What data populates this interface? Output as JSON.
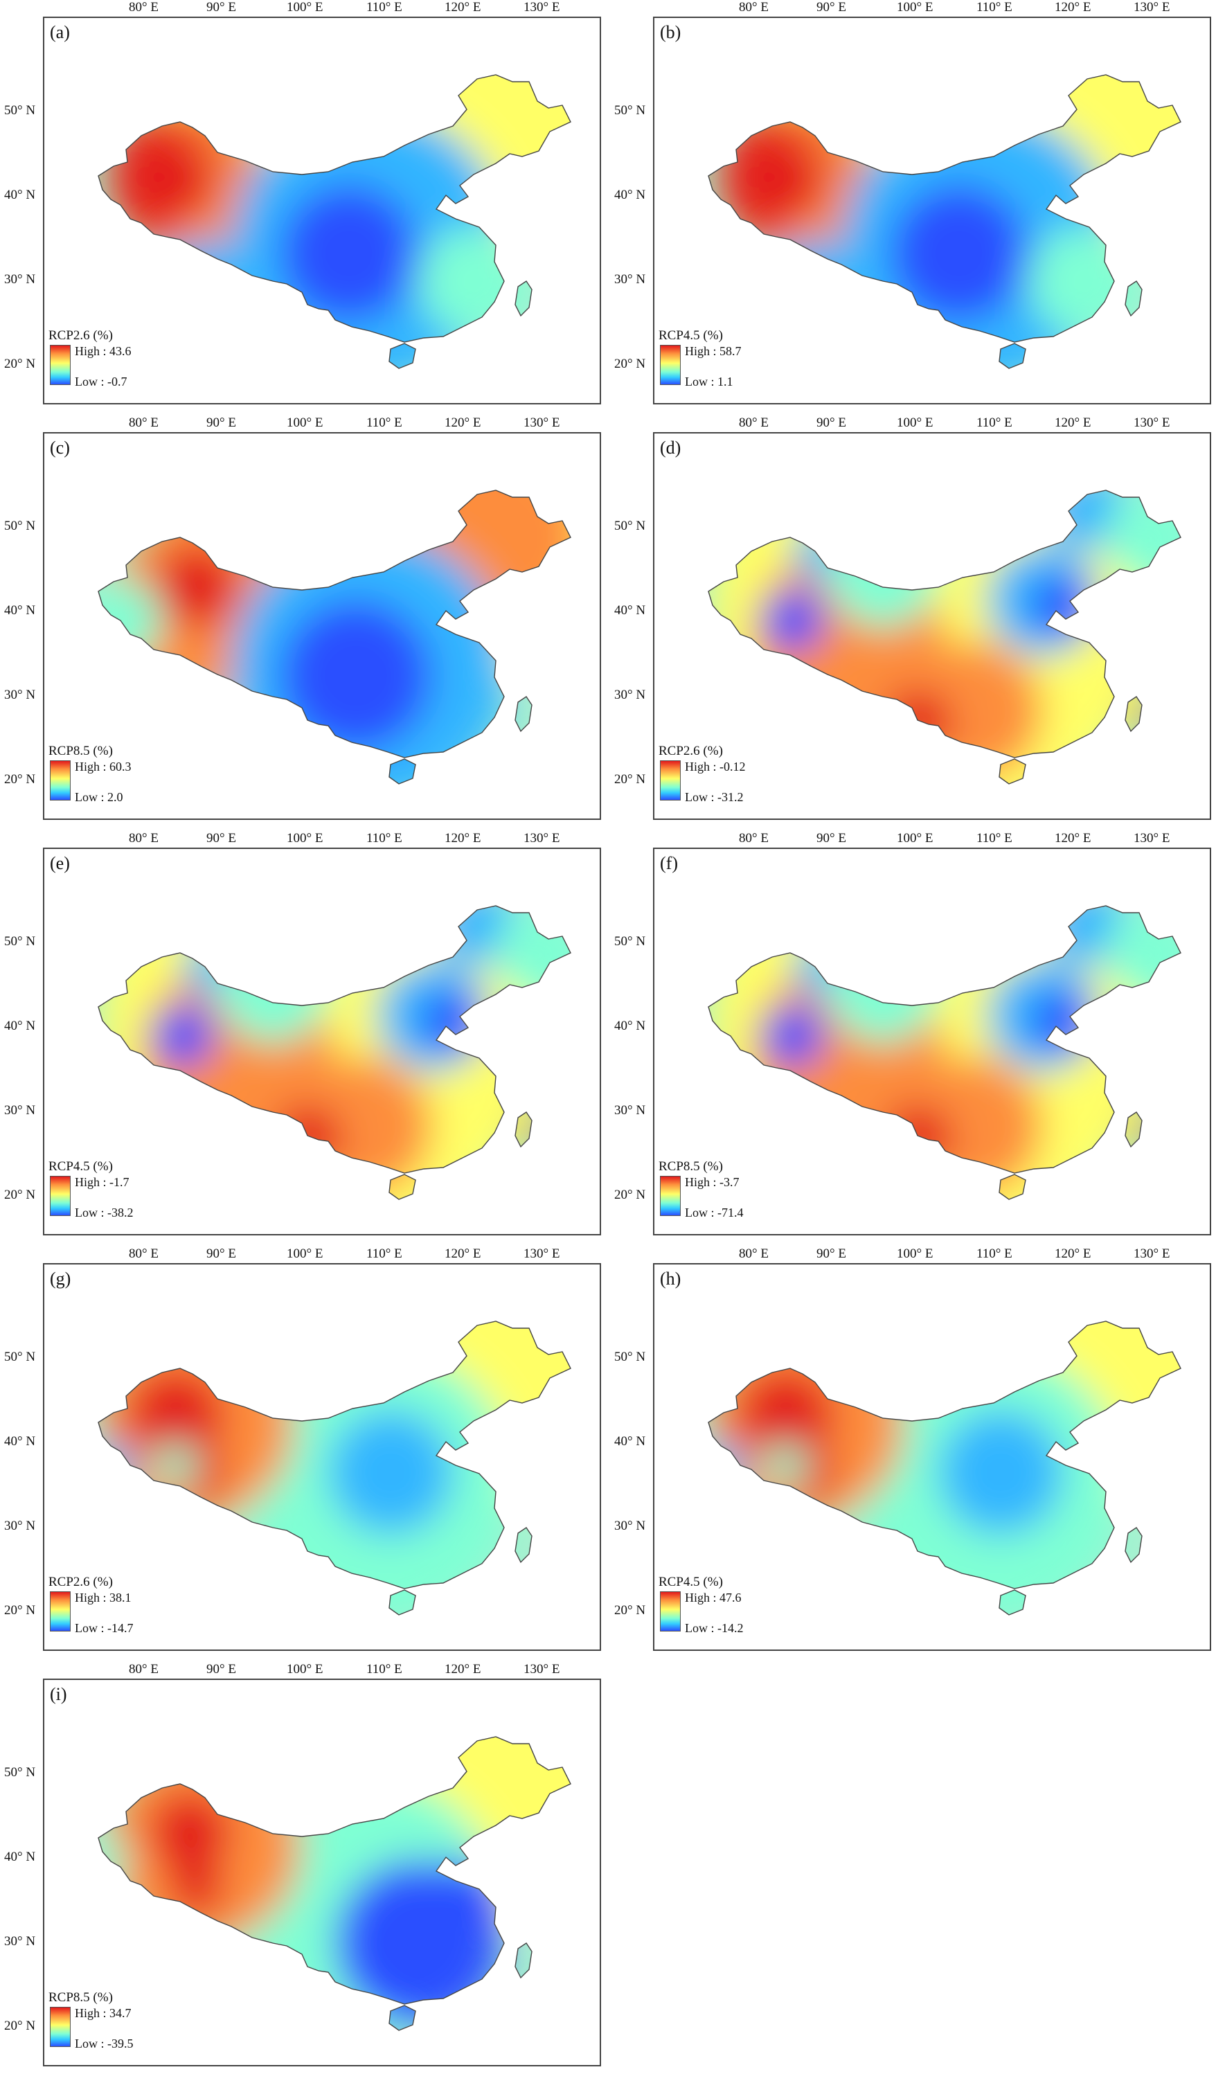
{
  "longitude_labels": [
    "80° E",
    "90° E",
    "100° E",
    "110° E",
    "120° E",
    "130° E"
  ],
  "latitude_labels": [
    "50° N",
    "40° N",
    "30° N",
    "20° N"
  ],
  "high_prefix": "High : ",
  "low_prefix": "Low : ",
  "colors": {
    "high": "#e31a1c",
    "mid": "#ffff66",
    "low": "#2b50ff",
    "border": "#444444"
  },
  "panels": [
    {
      "letter": "(a)",
      "scenario": "RCP2.6 (%)",
      "high": "43.6",
      "low": "-0.7",
      "pattern": "west-hot"
    },
    {
      "letter": "(b)",
      "scenario": "RCP4.5 (%)",
      "high": "58.7",
      "low": "1.1",
      "pattern": "west-hot"
    },
    {
      "letter": "(c)",
      "scenario": "RCP8.5 (%)",
      "high": "60.3",
      "low": "2.0",
      "pattern": "west-hot-wide"
    },
    {
      "letter": "(d)",
      "scenario": "RCP2.6 (%)",
      "high": "-0.12",
      "low": "-31.2",
      "pattern": "south-hot"
    },
    {
      "letter": "(e)",
      "scenario": "RCP4.5 (%)",
      "high": "-1.7",
      "low": "-38.2",
      "pattern": "south-hot"
    },
    {
      "letter": "(f)",
      "scenario": "RCP8.5 (%)",
      "high": "-3.7",
      "low": "-71.4",
      "pattern": "south-hot"
    },
    {
      "letter": "(g)",
      "scenario": "RCP2.6 (%)",
      "high": "38.1",
      "low": "-14.7",
      "pattern": "west-hot-mixed"
    },
    {
      "letter": "(h)",
      "scenario": "RCP4.5 (%)",
      "high": "47.6",
      "low": "-14.2",
      "pattern": "west-hot-mixed"
    },
    {
      "letter": "(i)",
      "scenario": "RCP8.5 (%)",
      "high": "34.7",
      "low": "-39.5",
      "pattern": "west-hot-southeast-cold"
    }
  ]
}
